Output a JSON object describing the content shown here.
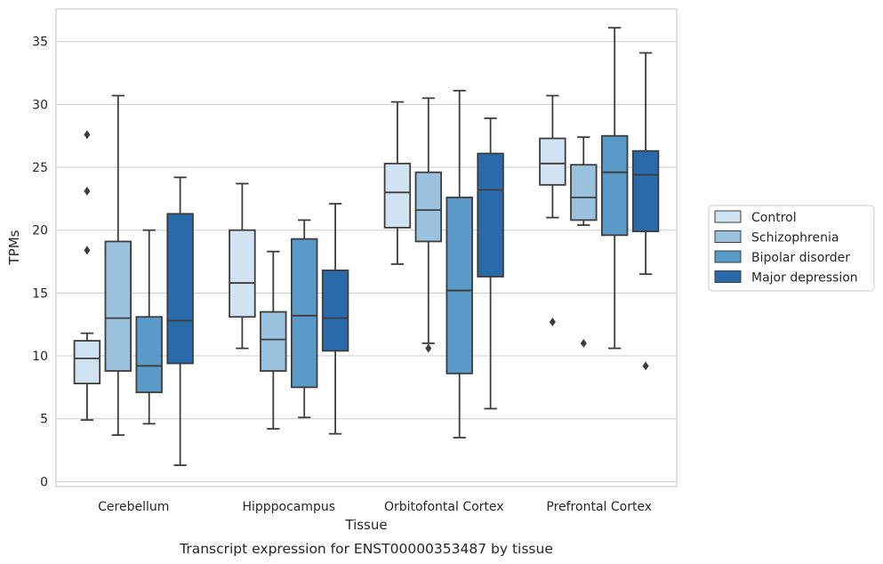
{
  "chart_data": {
    "type": "box",
    "caption": "Transcript expression for ENST00000353487 by tissue",
    "xlabel": "Tissue",
    "ylabel": "TPMs",
    "ylim": [
      -0.4,
      37.6
    ],
    "yticks": [
      0,
      5,
      10,
      15,
      20,
      25,
      30,
      35
    ],
    "grid": "horizontal",
    "legend_position": "right",
    "categories": [
      "Cerebellum",
      "Hipppocampus",
      "Orbitofontal Cortex",
      "Prefrontal Cortex"
    ],
    "series": [
      {
        "name": "Control",
        "color": "#d1e2f2",
        "boxes": [
          {
            "whislo": 4.9,
            "q1": 7.8,
            "med": 9.8,
            "q3": 11.2,
            "whishi": 11.8,
            "fliers": [
              18.4,
              23.1,
              27.6
            ]
          },
          {
            "whislo": 10.6,
            "q1": 13.1,
            "med": 15.8,
            "q3": 20.0,
            "whishi": 23.7,
            "fliers": []
          },
          {
            "whislo": 17.3,
            "q1": 20.2,
            "med": 23.0,
            "q3": 25.3,
            "whishi": 30.2,
            "fliers": []
          },
          {
            "whislo": 21.0,
            "q1": 23.6,
            "med": 25.3,
            "q3": 27.3,
            "whishi": 30.7,
            "fliers": [
              12.7
            ]
          }
        ]
      },
      {
        "name": "Schizophrenia",
        "color": "#9ac1dd",
        "boxes": [
          {
            "whislo": 3.7,
            "q1": 8.8,
            "med": 13.0,
            "q3": 19.1,
            "whishi": 30.7,
            "fliers": []
          },
          {
            "whislo": 4.2,
            "q1": 8.8,
            "med": 11.3,
            "q3": 13.5,
            "whishi": 18.3,
            "fliers": []
          },
          {
            "whislo": 11.0,
            "q1": 19.1,
            "med": 21.6,
            "q3": 24.6,
            "whishi": 30.5,
            "fliers": [
              10.6
            ]
          },
          {
            "whislo": 20.4,
            "q1": 20.8,
            "med": 22.6,
            "q3": 25.2,
            "whishi": 27.4,
            "fliers": [
              11.0
            ]
          }
        ]
      },
      {
        "name": "Bipolar disorder",
        "color": "#5a9ac8",
        "boxes": [
          {
            "whislo": 4.6,
            "q1": 7.1,
            "med": 9.2,
            "q3": 13.1,
            "whishi": 20.0,
            "fliers": []
          },
          {
            "whislo": 5.1,
            "q1": 7.5,
            "med": 13.2,
            "q3": 19.3,
            "whishi": 20.8,
            "fliers": []
          },
          {
            "whislo": 3.5,
            "q1": 8.6,
            "med": 15.2,
            "q3": 22.6,
            "whishi": 31.1,
            "fliers": []
          },
          {
            "whislo": 10.6,
            "q1": 19.6,
            "med": 24.6,
            "q3": 27.5,
            "whishi": 36.1,
            "fliers": []
          }
        ]
      },
      {
        "name": "Major depression",
        "color": "#2a6aab",
        "boxes": [
          {
            "whislo": 1.3,
            "q1": 9.4,
            "med": 12.8,
            "q3": 21.3,
            "whishi": 24.2,
            "fliers": []
          },
          {
            "whislo": 3.8,
            "q1": 10.4,
            "med": 13.0,
            "q3": 16.8,
            "whishi": 22.1,
            "fliers": []
          },
          {
            "whislo": 5.8,
            "q1": 16.3,
            "med": 23.2,
            "q3": 26.1,
            "whishi": 28.9,
            "fliers": []
          },
          {
            "whislo": 16.5,
            "q1": 19.9,
            "med": 24.4,
            "q3": 26.3,
            "whishi": 34.1,
            "fliers": [
              9.2
            ]
          }
        ]
      }
    ]
  }
}
